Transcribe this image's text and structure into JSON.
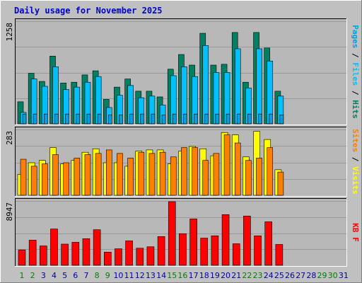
{
  "title": "Daily usage for November 2025",
  "colors": {
    "frame_bg": "#c0c0c0",
    "plot_bg": "#b8b8b8",
    "gridline": "#999999",
    "title_text": "#0000cc",
    "hits": "#008060",
    "files": "#00c0ff",
    "pages": "#00a0e0",
    "visits": "#ffff00",
    "sites": "#ff8000",
    "kbf": "#ff0000",
    "weekday_label": "#0000aa",
    "weekend_label": "#008000"
  },
  "chart_data": [
    {
      "type": "bar",
      "panel": "top",
      "ylabel_parts": [
        "Pages",
        " / ",
        "Files",
        " / ",
        "Hits"
      ],
      "ymax": 1258,
      "ymax_label": "1258",
      "grid": true,
      "categories": [
        "1",
        "2",
        "3",
        "4",
        "5",
        "6",
        "7",
        "8",
        "9",
        "10",
        "11",
        "12",
        "13",
        "14",
        "15",
        "16",
        "17",
        "18",
        "19",
        "20",
        "21",
        "22",
        "23",
        "24",
        "25",
        "26",
        "27",
        "28",
        "29",
        "30",
        "31"
      ],
      "series": [
        {
          "name": "Hits",
          "values": [
            270,
            620,
            520,
            830,
            500,
            510,
            600,
            650,
            300,
            450,
            550,
            400,
            400,
            330,
            670,
            850,
            720,
            1110,
            720,
            730,
            1120,
            510,
            1120,
            930,
            400,
            0,
            0,
            0,
            0,
            0,
            0
          ]
        },
        {
          "name": "Files",
          "values": [
            140,
            550,
            460,
            700,
            420,
            450,
            510,
            580,
            200,
            350,
            470,
            320,
            340,
            230,
            590,
            700,
            580,
            960,
            630,
            630,
            920,
            440,
            920,
            770,
            340,
            0,
            0,
            0,
            0,
            0,
            0
          ]
        },
        {
          "name": "Pages",
          "values": [
            120,
            120,
            120,
            120,
            120,
            120,
            120,
            120,
            110,
            110,
            120,
            120,
            120,
            110,
            120,
            120,
            120,
            120,
            120,
            120,
            120,
            120,
            120,
            120,
            110,
            0,
            0,
            0,
            0,
            0,
            0
          ]
        }
      ]
    },
    {
      "type": "bar",
      "panel": "middle",
      "ylabel_parts": [
        "Sites",
        " / ",
        "Visits"
      ],
      "ymax": 283,
      "ymax_label": "283",
      "grid": true,
      "categories": [
        "1",
        "2",
        "3",
        "4",
        "5",
        "6",
        "7",
        "8",
        "9",
        "10",
        "11",
        "12",
        "13",
        "14",
        "15",
        "16",
        "17",
        "18",
        "19",
        "20",
        "21",
        "22",
        "23",
        "24",
        "25",
        "26",
        "27",
        "28",
        "29",
        "30",
        "31"
      ],
      "series": [
        {
          "name": "Visits",
          "values": [
            90,
            140,
            150,
            205,
            135,
            150,
            185,
            200,
            140,
            140,
            125,
            190,
            195,
            195,
            135,
            190,
            210,
            200,
            170,
            270,
            260,
            165,
            275,
            240,
            110,
            0,
            0,
            0,
            0,
            0,
            0
          ]
        },
        {
          "name": "Sites",
          "values": [
            155,
            125,
            135,
            175,
            140,
            160,
            175,
            180,
            195,
            180,
            160,
            185,
            180,
            185,
            165,
            205,
            205,
            150,
            180,
            260,
            225,
            150,
            160,
            205,
            100,
            0,
            0,
            0,
            0,
            0,
            0
          ]
        }
      ]
    },
    {
      "type": "bar",
      "panel": "bottom",
      "ylabel_parts": [
        "KB F"
      ],
      "ymax": 8947,
      "ymax_label": "8947",
      "grid": true,
      "categories": [
        "1",
        "2",
        "3",
        "4",
        "5",
        "6",
        "7",
        "8",
        "9",
        "10",
        "11",
        "12",
        "13",
        "14",
        "15",
        "16",
        "17",
        "18",
        "19",
        "20",
        "21",
        "22",
        "23",
        "24",
        "25",
        "26",
        "27",
        "28",
        "29",
        "30",
        "31"
      ],
      "x_labels": [
        "1",
        "2",
        "3",
        "4",
        "5",
        "6",
        "7",
        "8",
        "9",
        "10",
        "11",
        "12",
        "13",
        "14",
        "15",
        "16",
        "17",
        "18",
        "19",
        "20",
        "21",
        "22",
        "23",
        "24",
        "25",
        "26",
        "27",
        "28",
        "29",
        "30",
        "31"
      ],
      "weekend_days": [
        "1",
        "2",
        "8",
        "9",
        "15",
        "16",
        "22",
        "23",
        "29",
        "30"
      ],
      "series": [
        {
          "name": "KB F",
          "values": [
            2150,
            3500,
            2700,
            5050,
            2950,
            3200,
            3700,
            4950,
            1830,
            2300,
            3400,
            2380,
            2580,
            4000,
            8850,
            4400,
            6450,
            3780,
            4100,
            7050,
            3000,
            6850,
            4100,
            6050,
            2900,
            0,
            0,
            0,
            0,
            0,
            0
          ]
        }
      ]
    }
  ]
}
